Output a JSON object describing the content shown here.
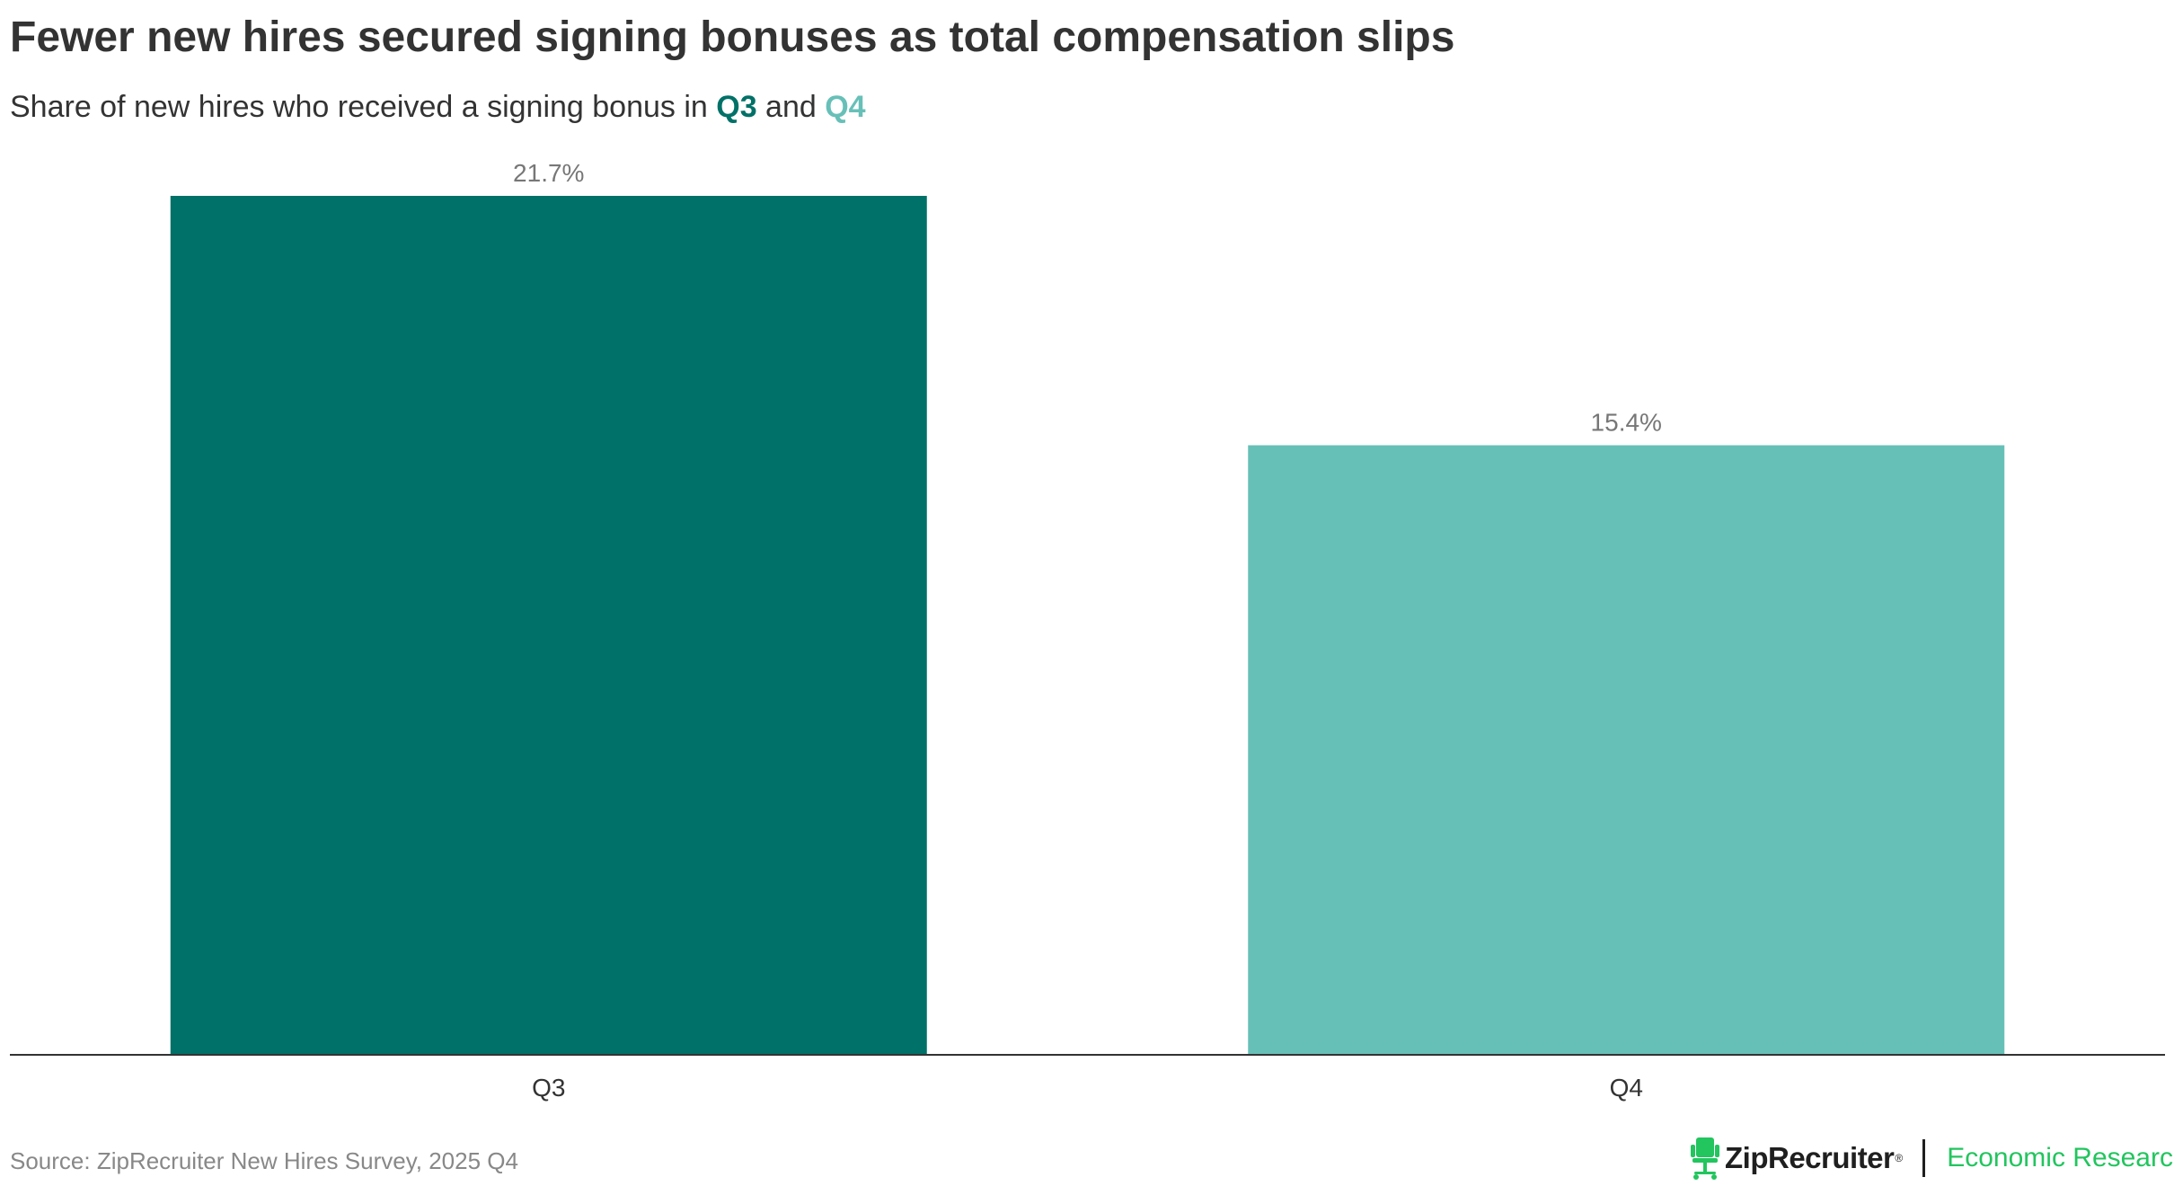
{
  "header": {
    "title": "Fewer new hires secured signing bonuses as total compensation slips",
    "subtitle_prefix": "Share of new hires who received a signing bonus in ",
    "subtitle_q3": "Q3",
    "subtitle_and": " and ",
    "subtitle_q4": "Q4"
  },
  "chart_data": {
    "type": "bar",
    "title": "Fewer new hires secured signing bonuses as total compensation slips",
    "subtitle": "Share of new hires who received a signing bonus in Q3 and Q4",
    "categories": [
      "Q3",
      "Q4"
    ],
    "values": [
      21.7,
      15.4
    ],
    "value_labels": [
      "21.7%",
      "15.4%"
    ],
    "colors": [
      "#007168",
      "#67c0b8"
    ],
    "xlabel": "",
    "ylabel": "",
    "ylim": [
      0,
      21.7
    ],
    "grid": false,
    "legend": "none"
  },
  "footer": {
    "source": "Source: ZipRecruiter New Hires Survey, 2025 Q4",
    "logo_text": "ZipRecruiter",
    "logo_tm": "®",
    "research_label": "Economic Research"
  },
  "colors": {
    "text": "#333333",
    "muted": "#888888",
    "axis": "#333333",
    "brand_green": "#22c55e"
  }
}
